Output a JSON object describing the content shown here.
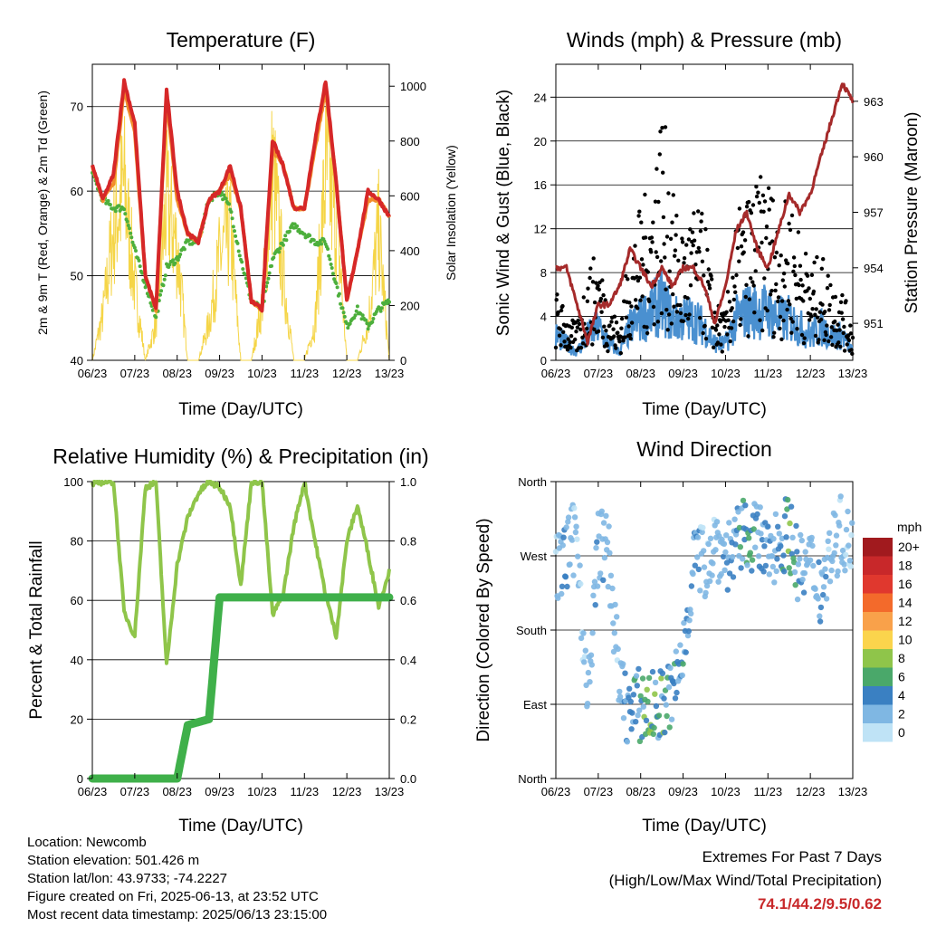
{
  "panels": {
    "temperature": {
      "title": "Temperature (F)",
      "ylabel_left": "2m & 9m T (Red, Orange) & 2m Td (Green)",
      "ylabel_right": "Solar Insolation (Yellow)",
      "xlabel": "Time (Day/UTC)"
    },
    "winds": {
      "title": "Winds (mph) & Pressure (mb)",
      "ylabel_left": "Sonic Wind & Gust (Blue, Black)",
      "ylabel_right": "Station Pressure (Maroon)",
      "xlabel": "Time (Day/UTC)"
    },
    "humidity": {
      "title": "Relative Humidity (%) & Precipitation (in)",
      "ylabel_left": "Percent & Total Rainfall",
      "xlabel": "Time (Day/UTC)"
    },
    "direction": {
      "title": "Wind Direction",
      "ylabel_left": "Direction (Colored By Speed)",
      "xlabel": "Time (Day/UTC)",
      "legend_title": "mph"
    }
  },
  "chart_data": [
    {
      "type": "line",
      "title": "Temperature (F)",
      "xlabel": "Time (Day/UTC)",
      "ylabel": "2m & 9m T (Red, Orange) & 2m Td (Green)",
      "y2label": "Solar Insolation (Yellow)",
      "x_ticks": [
        "06/23",
        "07/23",
        "08/23",
        "09/23",
        "10/23",
        "11/23",
        "12/23",
        "13/23"
      ],
      "ylim": [
        40,
        75
      ],
      "y_ticks": [
        40,
        50,
        60,
        70
      ],
      "y2lim": [
        0,
        1080
      ],
      "y2_ticks": [
        0,
        200,
        400,
        600,
        800,
        1000
      ],
      "x_hours": [
        0,
        6,
        12,
        18,
        24,
        30,
        36,
        42,
        48,
        54,
        60,
        66,
        72,
        78,
        84,
        90,
        96,
        102,
        108,
        114,
        120,
        126,
        132,
        138,
        144,
        150,
        156,
        162,
        168
      ],
      "series": [
        {
          "name": "2m T",
          "color": "#d62728",
          "values": [
            63,
            59,
            62,
            73,
            68,
            50,
            46,
            72,
            60,
            55,
            54,
            59,
            60,
            63,
            58,
            47,
            46,
            66,
            63,
            58,
            58,
            66,
            73,
            61,
            47,
            53,
            60,
            59,
            57
          ]
        },
        {
          "name": "9m T",
          "color": "#f28e2b",
          "values": [
            63,
            59,
            61,
            72,
            67,
            50,
            46,
            71,
            59,
            55,
            54,
            59,
            60,
            62,
            58,
            47,
            46,
            65,
            63,
            58,
            58,
            65,
            72,
            61,
            47,
            53,
            59,
            59,
            57
          ]
        },
        {
          "name": "2m Td",
          "color": "#4daf3c",
          "values": [
            62,
            59,
            58,
            58,
            53,
            49,
            45,
            51,
            52,
            54,
            54,
            59,
            60,
            58,
            52,
            47,
            46,
            52,
            54,
            56,
            55,
            54,
            54,
            49,
            44,
            46,
            44,
            46,
            47
          ]
        },
        {
          "name": "Solar Insolation",
          "color": "#f5d547",
          "values": [
            0,
            250,
            700,
            950,
            400,
            0,
            200,
            850,
            600,
            0,
            0,
            200,
            550,
            700,
            0,
            0,
            300,
            1030,
            450,
            0,
            0,
            200,
            1000,
            800,
            0,
            0,
            200,
            700,
            0
          ]
        }
      ]
    },
    {
      "type": "scatter",
      "title": "Winds (mph) & Pressure (mb)",
      "xlabel": "Time (Day/UTC)",
      "ylabel": "Sonic Wind & Gust (Blue, Black)",
      "y2label": "Station Pressure (Maroon)",
      "x_ticks": [
        "06/23",
        "07/23",
        "08/23",
        "09/23",
        "10/23",
        "11/23",
        "12/23",
        "13/23"
      ],
      "ylim": [
        0,
        27
      ],
      "y_ticks": [
        0,
        4,
        8,
        12,
        16,
        20,
        24
      ],
      "y2lim": [
        949,
        965
      ],
      "y2_ticks": [
        951,
        954,
        957,
        960,
        963
      ],
      "x_hours": [
        0,
        6,
        12,
        18,
        24,
        30,
        36,
        42,
        48,
        54,
        60,
        66,
        72,
        78,
        84,
        90,
        96,
        102,
        108,
        114,
        120,
        126,
        132,
        138,
        144,
        150,
        156,
        162,
        168
      ],
      "series": [
        {
          "name": "Gust",
          "color": "#000000",
          "values": [
            6,
            4,
            3,
            8,
            9,
            5,
            3,
            10,
            13,
            15,
            22,
            14,
            11,
            13,
            12,
            5,
            4,
            12,
            14,
            15,
            16,
            12,
            14,
            11,
            8,
            9,
            7,
            6,
            3
          ]
        },
        {
          "name": "Wind",
          "color": "#4a90d0",
          "values": [
            3,
            2,
            1,
            3,
            4,
            2,
            1,
            4,
            5,
            6,
            7,
            5,
            5,
            5,
            4,
            2,
            2,
            5,
            6,
            6,
            6,
            5,
            5,
            4,
            3,
            4,
            3,
            3,
            1
          ]
        },
        {
          "name": "Pressure",
          "color": "#a52a2a",
          "values": [
            954,
            954,
            952,
            950,
            952,
            952,
            953,
            955,
            954,
            953,
            954,
            953,
            954,
            954,
            953,
            951,
            953,
            956,
            957,
            955,
            954,
            956,
            958,
            957,
            958,
            960,
            962,
            964,
            963
          ]
        }
      ]
    },
    {
      "type": "line",
      "title": "Relative Humidity (%) & Precipitation (in)",
      "xlabel": "Time (Day/UTC)",
      "ylabel": "Percent & Total Rainfall",
      "x_ticks": [
        "06/23",
        "07/23",
        "08/23",
        "09/23",
        "10/23",
        "11/23",
        "12/23",
        "13/23"
      ],
      "ylim": [
        0,
        100
      ],
      "y_ticks": [
        0,
        20,
        40,
        60,
        80,
        100
      ],
      "y2lim": [
        0,
        1.0
      ],
      "y2_ticks": [
        "0.0",
        "0.2",
        "0.4",
        "0.6",
        "0.8",
        "1.0"
      ],
      "x_hours": [
        0,
        6,
        12,
        18,
        24,
        30,
        36,
        42,
        48,
        54,
        60,
        66,
        72,
        78,
        84,
        90,
        96,
        102,
        108,
        114,
        120,
        126,
        132,
        138,
        144,
        150,
        156,
        162,
        168
      ],
      "series": [
        {
          "name": "Relative Humidity",
          "color": "#8fc54a",
          "values": [
            99,
            100,
            100,
            56,
            48,
            98,
            100,
            38,
            72,
            88,
            96,
            100,
            98,
            92,
            65,
            100,
            100,
            55,
            62,
            85,
            100,
            80,
            62,
            48,
            80,
            92,
            76,
            58,
            70
          ]
        },
        {
          "name": "Total Precipitation",
          "color": "#3fb04a",
          "values": [
            0,
            0,
            0,
            0,
            0,
            0,
            0,
            0,
            0,
            0.18,
            0.19,
            0.2,
            0.61,
            0.61,
            0.61,
            0.61,
            0.61,
            0.61,
            0.61,
            0.61,
            0.61,
            0.61,
            0.61,
            0.61,
            0.61,
            0.61,
            0.61,
            0.61,
            0.61
          ]
        }
      ]
    },
    {
      "type": "scatter",
      "title": "Wind Direction",
      "xlabel": "Time (Day/UTC)",
      "ylabel": "Direction (Colored By Speed)",
      "x_ticks": [
        "06/23",
        "07/23",
        "08/23",
        "09/23",
        "10/23",
        "11/23",
        "12/23",
        "13/23"
      ],
      "y_ticks": [
        "North",
        "East",
        "South",
        "West",
        "North"
      ],
      "ylim": [
        0,
        360
      ],
      "x_hours": [
        0,
        6,
        12,
        18,
        24,
        30,
        36,
        42,
        48,
        54,
        60,
        66,
        72,
        78,
        84,
        90,
        96,
        102,
        108,
        114,
        120,
        126,
        132,
        138,
        144,
        150,
        156,
        162,
        168
      ],
      "series": [
        {
          "name": "Direction",
          "values": [
            250,
            270,
            300,
            80,
            290,
            270,
            110,
            80,
            90,
            85,
            90,
            100,
            150,
            270,
            260,
            290,
            270,
            280,
            300,
            290,
            270,
            290,
            300,
            250,
            260,
            230,
            280,
            300,
            270
          ]
        },
        {
          "name": "Speed",
          "values": [
            2,
            3,
            1,
            2,
            3,
            2,
            2,
            4,
            5,
            7,
            6,
            4,
            4,
            3,
            2,
            2,
            3,
            4,
            6,
            4,
            3,
            4,
            6,
            3,
            2,
            3,
            2,
            2,
            1
          ]
        }
      ],
      "legend_labels": [
        "20+",
        "18",
        "16",
        "14",
        "12",
        "10",
        "8",
        "6",
        "4",
        "2",
        "0"
      ],
      "legend_colors": [
        "#a11a1e",
        "#c8282a",
        "#e0382e",
        "#f36a2b",
        "#f9a14a",
        "#fbd44c",
        "#8fc54a",
        "#4aa86a",
        "#3a80c2",
        "#7fb7e3",
        "#bfe3f6"
      ]
    }
  ],
  "footer": {
    "location": "Location: Newcomb",
    "elevation": "Station elevation: 501.426 m",
    "latlon": "Station lat/lon: 43.9733; -74.2227",
    "created": "Figure created on Fri, 2025-06-13, at 23:52 UTC",
    "recent": "Most recent data timestamp: 2025/06/13 23:15:00",
    "extremes_title": "Extremes For Past 7 Days",
    "extremes_subtitle": "(High/Low/Max Wind/Total Precipitation)",
    "extremes_values": "74.1/44.2/9.5/0.62"
  }
}
